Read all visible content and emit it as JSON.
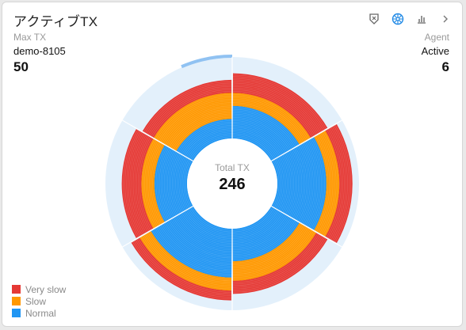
{
  "header": {
    "title": "アクティブTX"
  },
  "toolbar": {
    "icons": [
      "filter-shield-icon",
      "wheel-view-icon",
      "bar-chart-icon",
      "chevron-right-icon"
    ],
    "active_color": "#1e88e5",
    "inactive_color": "#666666"
  },
  "stats": {
    "max_tx_label": "Max TX",
    "max_tx_agent": "demo-8105",
    "max_tx_value": "50",
    "agent_label": "Agent",
    "agent_status": "Active",
    "agent_value": "6"
  },
  "center": {
    "label": "Total TX",
    "value": "246"
  },
  "legend": [
    {
      "label": "Very slow",
      "color": "#e53935"
    },
    {
      "label": "Slow",
      "color": "#ff9800"
    },
    {
      "label": "Normal",
      "color": "#2196f3"
    }
  ],
  "chart_data": {
    "type": "radial-stacked-bar",
    "max_tx": 50,
    "agents": [
      {
        "normal": 20,
        "slow": 8,
        "very_slow": 12
      },
      {
        "normal": 30,
        "slow": 8,
        "very_slow": 8
      },
      {
        "normal": 20,
        "slow": 12,
        "very_slow": 8
      },
      {
        "normal": 30,
        "slow": 8,
        "very_slow": 6
      },
      {
        "normal": 20,
        "slow": 8,
        "very_slow": 12
      },
      {
        "normal": 12,
        "slow": 16,
        "very_slow": 8
      }
    ],
    "background_color": "#e3f0fb",
    "progress_fraction": 0.065
  }
}
